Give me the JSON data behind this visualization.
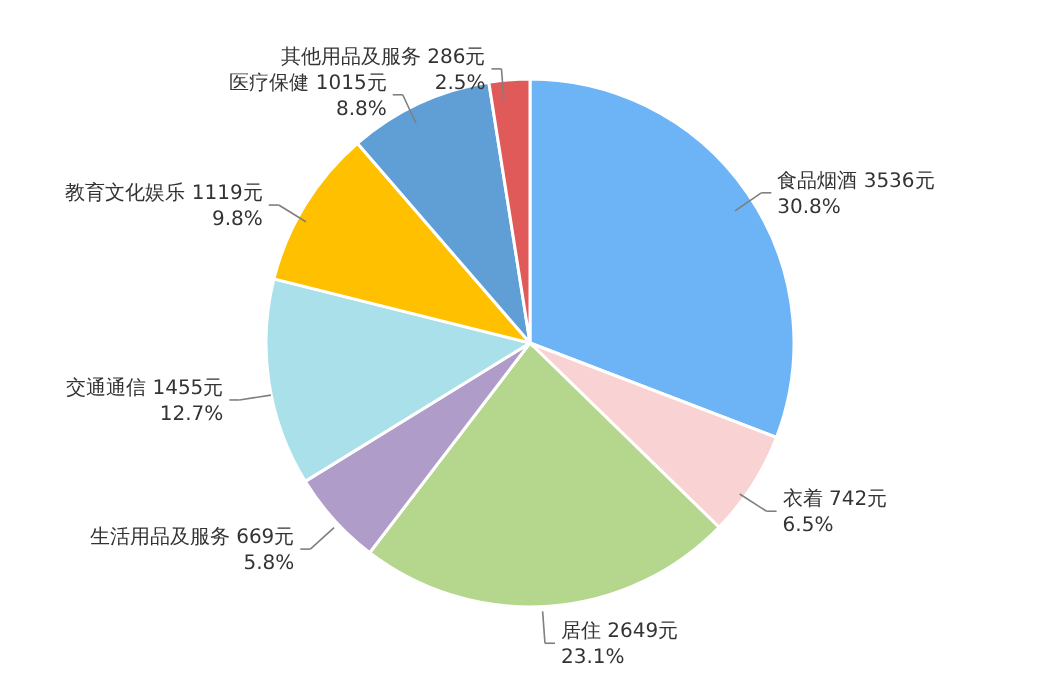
{
  "chart_data": {
    "type": "pie",
    "categories": [
      "食品烟酒",
      "衣着",
      "居住",
      "生活用品及服务",
      "交通通信",
      "教育文化娱乐",
      "医疗保健",
      "其他用品及服务"
    ],
    "values": [
      3536,
      742,
      2649,
      669,
      1455,
      1119,
      1015,
      286
    ],
    "value_labels": [
      "3536元\n30.8%",
      "742元\n6.5%",
      "2649元\n23.1%",
      "669元\n5.8%",
      "1455元\n12.7%",
      "1119元\n9.8%",
      "1015元\n8.8%",
      "286元\n2.5%"
    ],
    "colors": [
      "#6cb4f5",
      "#f9d3d3",
      "#b5d68d",
      "#b09cc8",
      "#a9e0ea",
      "#ffc000",
      "#5f9fd6",
      "#e05a5a"
    ],
    "legend": false
  }
}
